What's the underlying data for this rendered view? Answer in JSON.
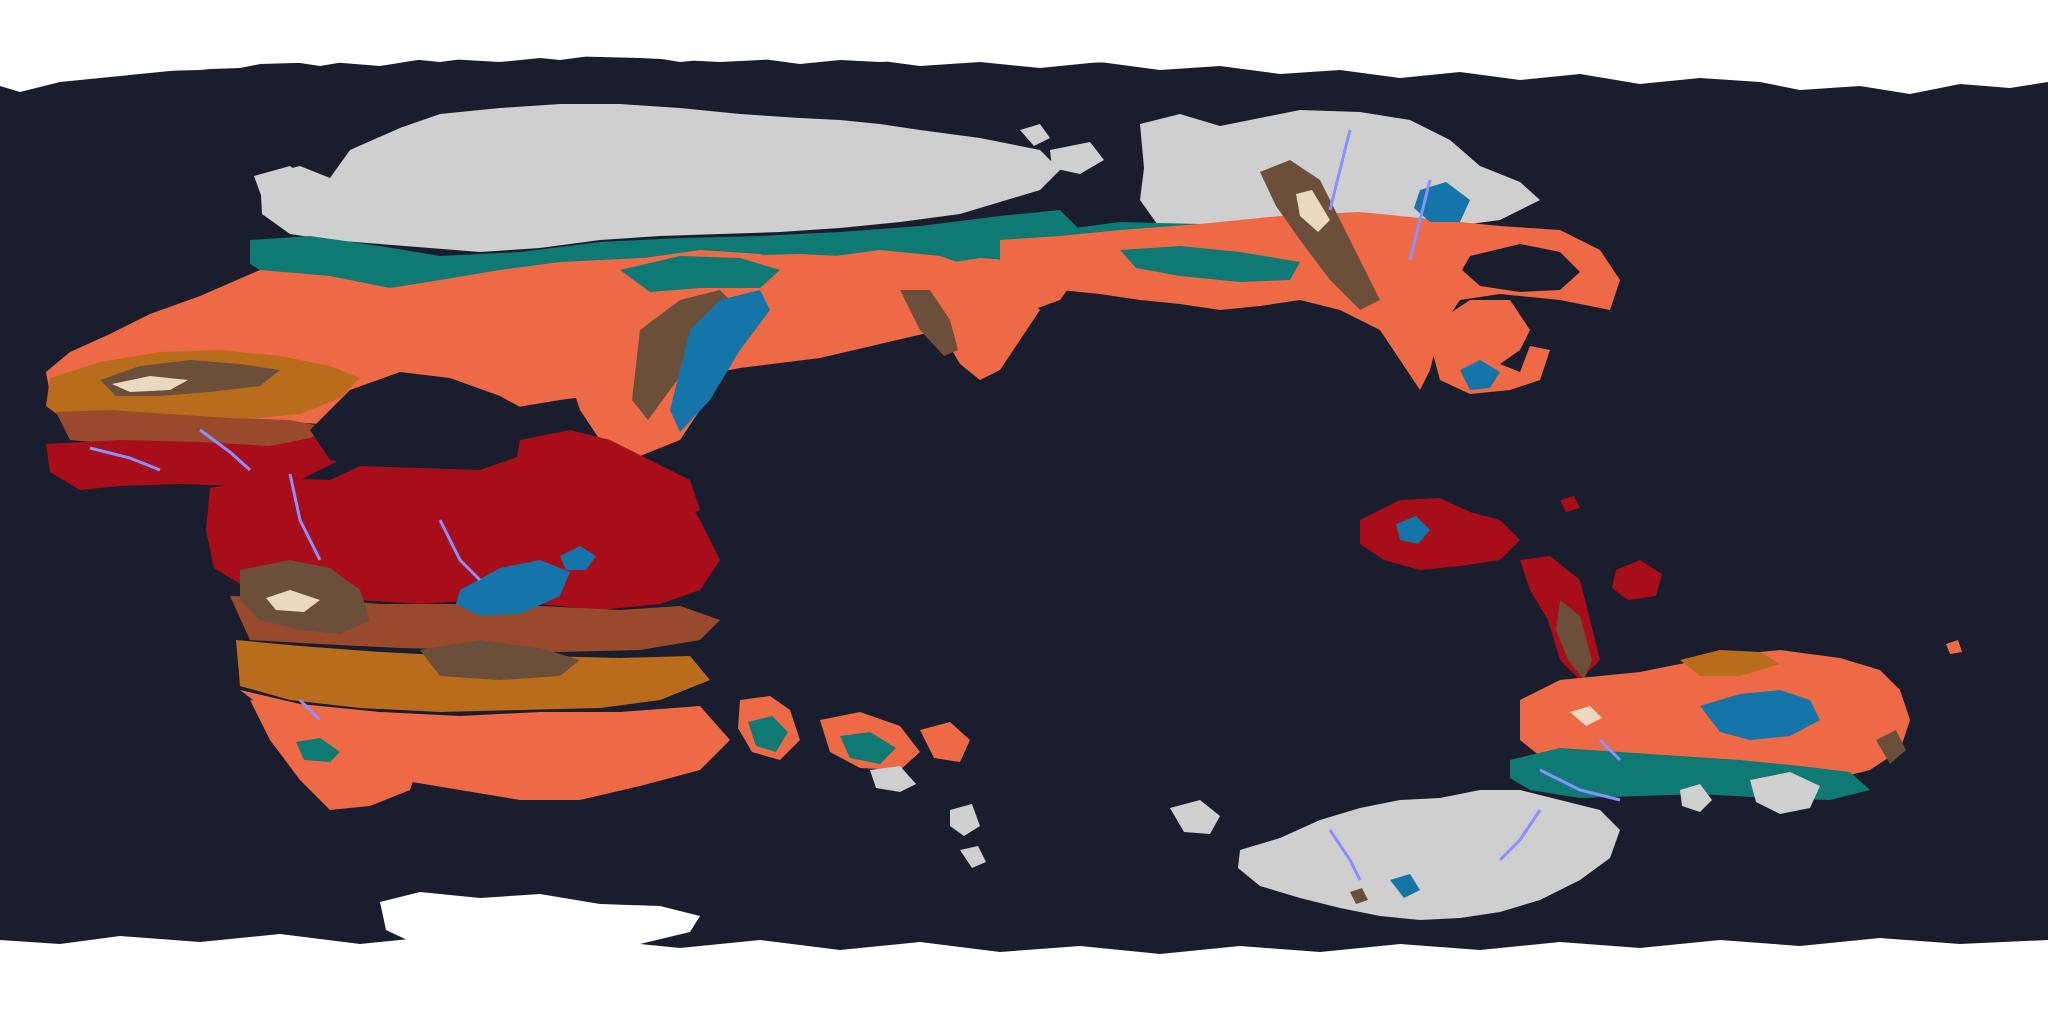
{
  "map": {
    "kind": "fictional climate / biome world map, equirectangular projection",
    "colors": {
      "background": "#ffffff",
      "ocean": "#1a1d2e",
      "ice_cap": "#ffffff",
      "tundra": "#cfcfcf",
      "boreal_forest": "#0e7a73",
      "temperate": "#ee6a46",
      "savanna": "#b96d1c",
      "semi_arid": "#9a4a2c",
      "tropical_rainforest": "#a80d1a",
      "highlands": "#6b4f3a",
      "alpine": "#ead8c0",
      "lakes": "#1574a8",
      "rivers": "#8a90ff"
    },
    "regions": [
      {
        "id": "north-polar-ice",
        "biome": "ice_cap"
      },
      {
        "id": "south-polar-ice",
        "biome": "ice_cap"
      },
      {
        "id": "western-continent",
        "biome": "mixed"
      },
      {
        "id": "central-landmass",
        "biome": "mixed"
      },
      {
        "id": "northeast-continent",
        "biome": "mixed"
      },
      {
        "id": "southern-continent",
        "biome": "mixed"
      },
      {
        "id": "antarctic-landmass",
        "biome": "tundra"
      },
      {
        "id": "southern-archipelago",
        "biome": "mixed"
      }
    ]
  }
}
